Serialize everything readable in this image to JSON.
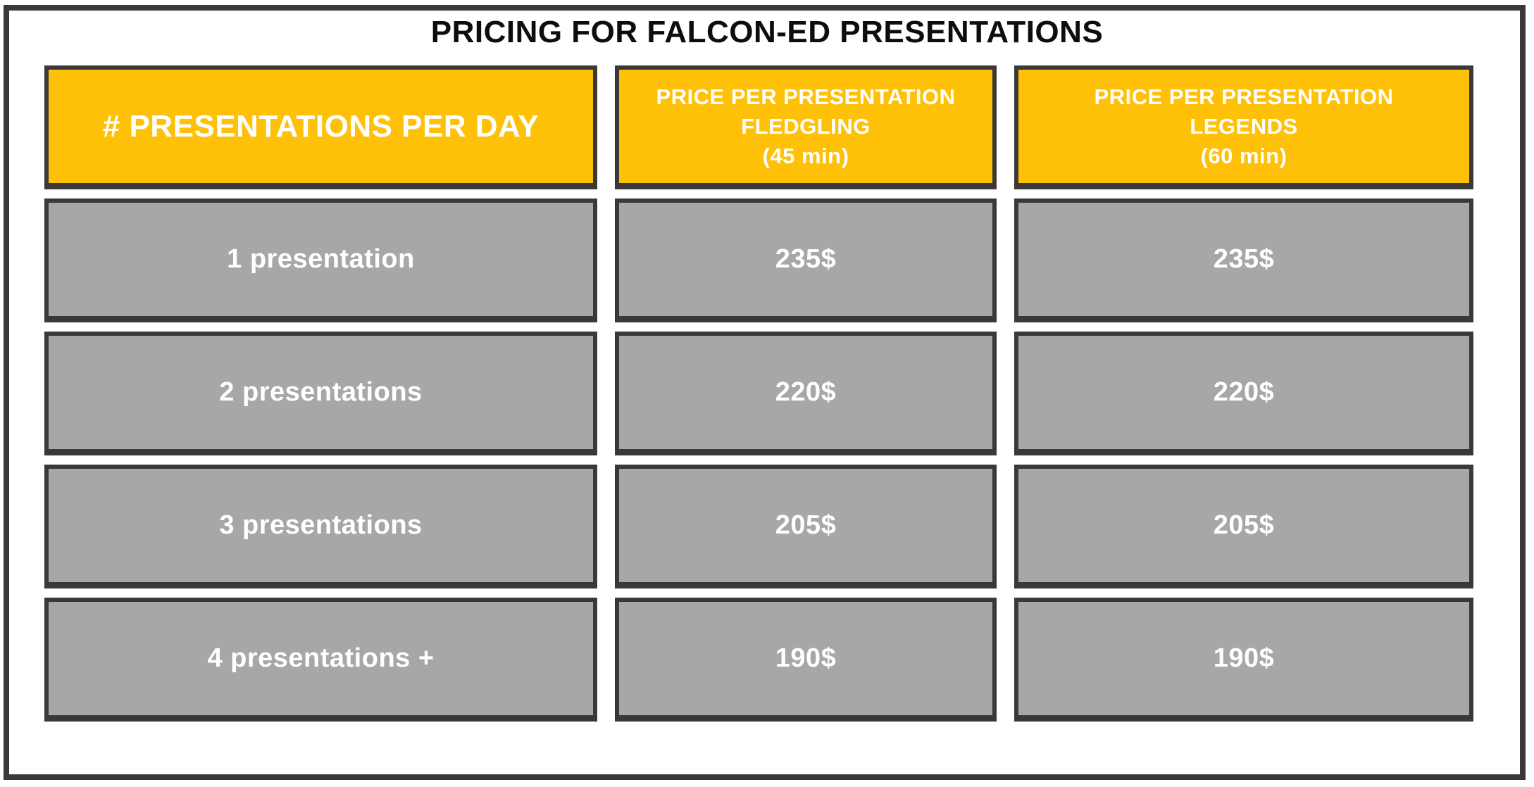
{
  "title": "PRICING FOR FALCON-ED PRESENTATIONS",
  "colors": {
    "accent": "#FFC008",
    "cell_gray": "#A7A7A7",
    "border": "#3B3838",
    "header_text": "#FFFFFF",
    "title_text": "#0D0D0D"
  },
  "chart_data": {
    "type": "table",
    "title": "PRICING FOR FALCON-ED PRESENTATIONS",
    "columns": [
      {
        "header_lines": [
          "# PRESENTATIONS PER DAY"
        ]
      },
      {
        "header_lines": [
          "PRICE PER PRESENTATION",
          "FLEDGLING",
          "(45 min)"
        ]
      },
      {
        "header_lines": [
          "PRICE PER PRESENTATION",
          "LEGENDS",
          "(60 min)"
        ]
      }
    ],
    "rows": [
      [
        "1 presentation",
        "235$",
        "235$"
      ],
      [
        "2 presentations",
        "220$",
        "220$"
      ],
      [
        "3 presentations",
        "205$",
        "205$"
      ],
      [
        "4 presentations +",
        "190$",
        "190$"
      ]
    ],
    "layout": {
      "header_background": "#FFC008",
      "row_background": "#A7A7A7",
      "cell_border": "#3B3838",
      "grid": "separated-cells"
    }
  }
}
